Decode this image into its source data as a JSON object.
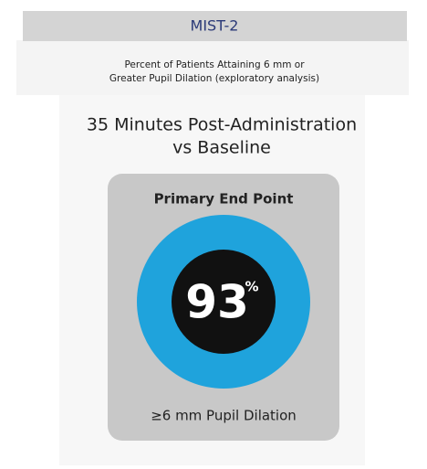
{
  "header": {
    "title": "MIST-2"
  },
  "subtitle": [
    "Percent of Patients Attaining 6 mm or",
    "Greater Pupil Dilation (exploratory analysis)"
  ],
  "heading": [
    "35 Minutes Post-Administration",
    "vs Baseline"
  ],
  "card": {
    "title": "Primary End Point",
    "value": 93,
    "unit": "%",
    "label": "≥6 mm Pupil Dilation"
  }
}
